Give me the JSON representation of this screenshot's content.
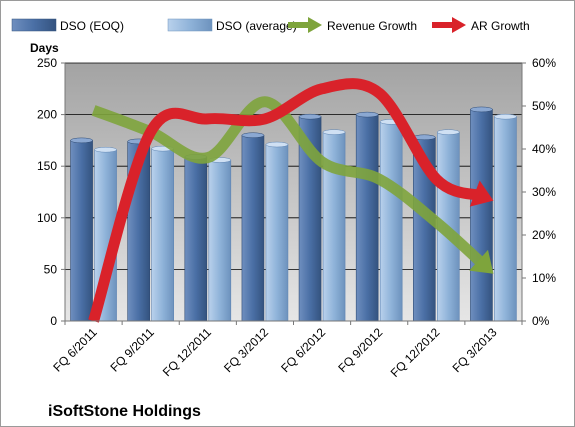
{
  "chart_data": {
    "type": "bar",
    "title": "",
    "caption": "iSoftStone Holdings",
    "ylabel_left": "Days",
    "ylabel_right": "",
    "ylim_left": [
      0,
      250
    ],
    "ylim_right": [
      0,
      0.6
    ],
    "yticks_left": [
      "0",
      "50",
      "100",
      "150",
      "200",
      "250"
    ],
    "yticks_right": [
      "0%",
      "10%",
      "20%",
      "30%",
      "40%",
      "50%",
      "60%"
    ],
    "categories": [
      "FQ 6/2011",
      "FQ 9/2011",
      "FQ 12/2011",
      "FQ 3/2012",
      "FQ 6/2012",
      "FQ 9/2012",
      "FQ 12/2012",
      "FQ 3/2013"
    ],
    "grid": true,
    "legend_position": "top",
    "series": [
      {
        "name": "DSO (EOQ)",
        "kind": "bar",
        "axis": "left",
        "color": "#4a6fa5",
        "values": [
          175,
          174,
          159,
          180,
          198,
          200,
          178,
          205
        ]
      },
      {
        "name": "DSO (average)",
        "kind": "bar",
        "axis": "left",
        "color": "#8fb3d9",
        "values": [
          166,
          167,
          156,
          171,
          183,
          193,
          183,
          198
        ]
      },
      {
        "name": "Revenue Growth",
        "kind": "arrow-line",
        "axis": "right",
        "color": "#7ea43c",
        "values": [
          0.49,
          0.44,
          0.38,
          0.51,
          0.37,
          0.33,
          0.23,
          0.11
        ]
      },
      {
        "name": "AR Growth",
        "kind": "arrow-line",
        "axis": "right",
        "color": "#d9222a",
        "values": [
          0.0,
          0.44,
          0.47,
          0.47,
          0.54,
          0.53,
          0.33,
          0.28
        ]
      }
    ]
  }
}
